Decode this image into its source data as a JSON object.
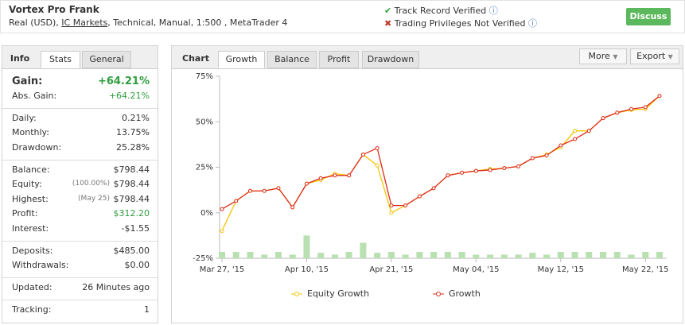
{
  "header": {
    "title": "Vortex Pro Frank",
    "account": {
      "prefix": "Real (USD),",
      "broker": "IC Markets",
      "details": ", Technical, Manual, 1:500 , MetaTrader 4"
    },
    "status": [
      "Track Record Verified",
      "Trading Privileges Not Verified"
    ],
    "button": "Discuss"
  },
  "stats": {
    "tabs": [
      "Info",
      "Stats",
      "General"
    ],
    "groups": [
      [
        {
          "label": "Gain:",
          "value": "+64.21%",
          "color": "#2e9e3e"
        },
        {
          "label": "Abs. Gain:",
          "value": "+64.21%",
          "color": "#2e9e3e"
        }
      ],
      [
        {
          "label": "Daily:",
          "value": "0.21%"
        },
        {
          "label": "Monthly:",
          "value": "13.75%"
        },
        {
          "label": "Drawdown:",
          "value": "25.28%"
        }
      ],
      [
        {
          "label": "Balance:",
          "value": "$798.44"
        },
        {
          "label": "Equity:",
          "note": "(100.00%)",
          "value": "$798.44"
        },
        {
          "label": "Highest:",
          "note": "(May 25)",
          "value": "$798.44"
        },
        {
          "label": "Profit:",
          "value": "$312.20",
          "color": "#2e9e3e"
        },
        {
          "label": "Interest:",
          "value": "-$1.55"
        }
      ],
      [
        {
          "label": "Deposits:",
          "value": "$485.00"
        },
        {
          "label": "Withdrawals:",
          "value": "$0.00"
        }
      ],
      [
        {
          "label": "Updated:",
          "value": "26 Minutes ago"
        }
      ],
      [
        {
          "label": "Tracking:",
          "value": "1"
        }
      ]
    ]
  },
  "chart_panel": {
    "heading": "Chart",
    "tabs": [
      "Growth",
      "Balance",
      "Profit",
      "Drawdown"
    ],
    "buttons": [
      "More",
      "Export"
    ]
  },
  "chart_data": {
    "type": "line",
    "categories": [
      "Mar 27, '15",
      null,
      null,
      null,
      null,
      null,
      "Apr 10, '15",
      null,
      null,
      null,
      null,
      null,
      "Apr 21, '15",
      null,
      null,
      null,
      null,
      null,
      "May 04, '15",
      null,
      null,
      null,
      null,
      null,
      "May 12, '15",
      null,
      null,
      null,
      null,
      null,
      "May 22, '15",
      null
    ],
    "series": [
      {
        "name": "Equity Growth",
        "color": "#f5c400",
        "values": [
          -10,
          6.5,
          12,
          12,
          13.5,
          3,
          16,
          18,
          21.5,
          20.5,
          32,
          26,
          0,
          4,
          9,
          13.5,
          20.5,
          22,
          23,
          24,
          24.5,
          25.5,
          30,
          32,
          36,
          45,
          45,
          52,
          55,
          56.5,
          57,
          64.21
        ]
      },
      {
        "name": "Growth",
        "color": "#dd2b1c",
        "values": [
          2,
          6.5,
          12,
          12,
          13.5,
          3,
          16,
          19,
          20.5,
          20.5,
          32,
          35.5,
          4,
          4,
          9,
          13.5,
          20.5,
          22,
          23,
          23.5,
          24.5,
          25.5,
          30,
          31.5,
          37,
          40.5,
          45,
          52,
          55,
          57,
          58,
          64.21
        ]
      }
    ],
    "bars": {
      "color": "#b9e0b0",
      "values": [
        -21.5,
        -21.5,
        -21.5,
        -23,
        -21.5,
        -23,
        -12.5,
        -22,
        -23,
        -21.5,
        -16.5,
        -22,
        -21.5,
        -23,
        -21.5,
        -21.5,
        -21.5,
        -21.5,
        -23,
        -23,
        -23,
        -23,
        -22,
        -23,
        -21.5,
        -21.5,
        -21.5,
        -21.5,
        -21.5,
        -23,
        -21.5,
        -21.5
      ]
    },
    "ylim": [
      -25,
      75
    ],
    "yticks": [
      {
        "value": -25,
        "label": "-25%"
      },
      {
        "value": 0,
        "label": "0%"
      },
      {
        "value": 25,
        "label": "25%"
      },
      {
        "value": 50,
        "label": "50%"
      },
      {
        "value": 75,
        "label": "75%"
      }
    ],
    "grid": false
  }
}
